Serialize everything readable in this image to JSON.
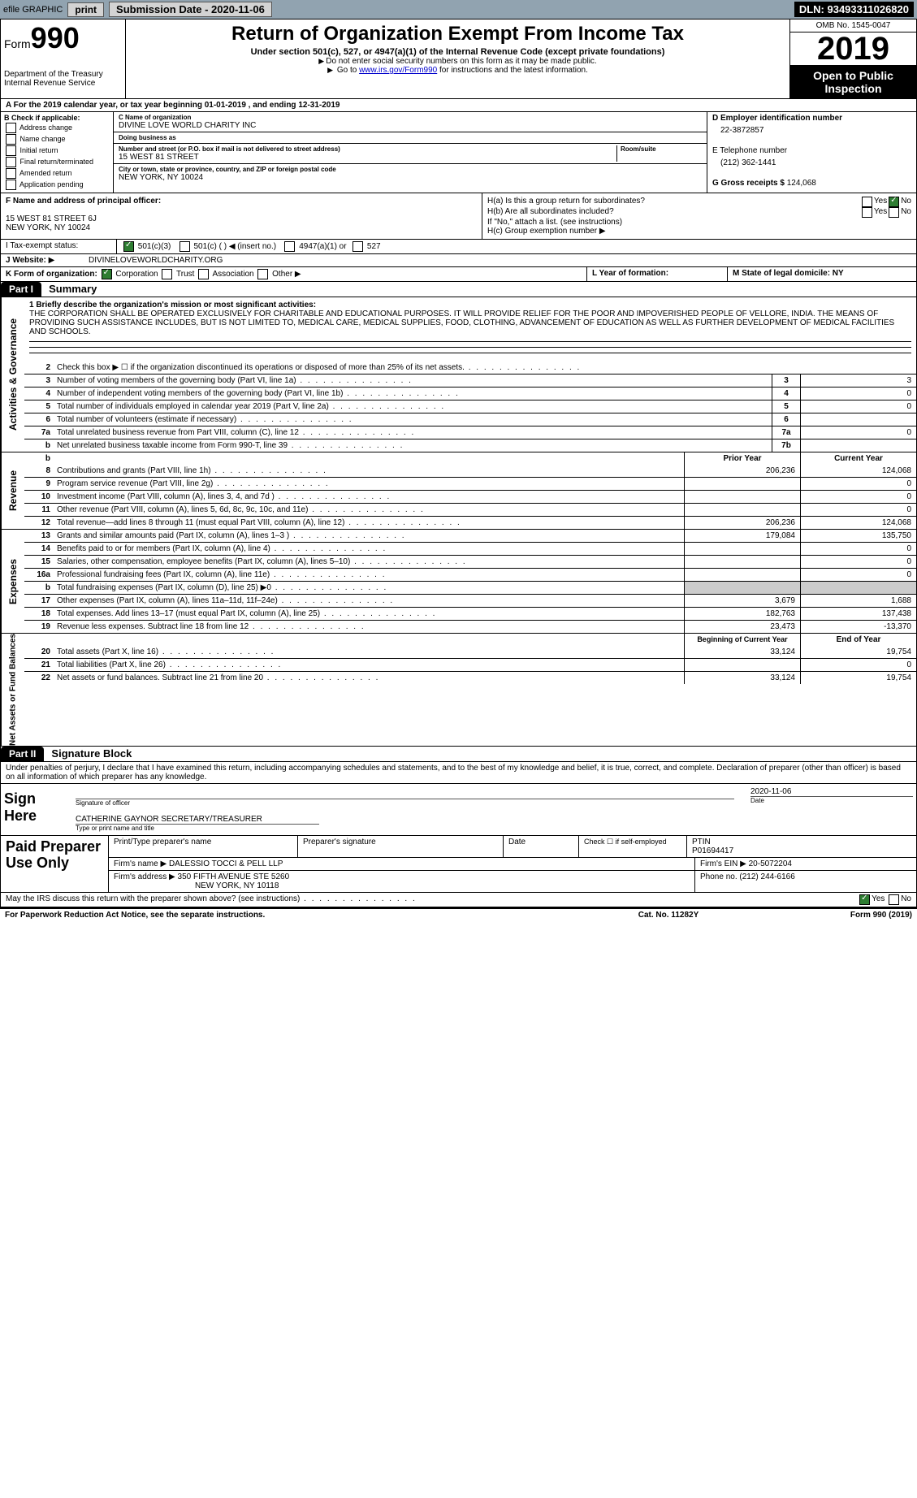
{
  "topbar": {
    "efile": "efile GRAPHIC",
    "print": "print",
    "subdate_label": "Submission Date - 2020-11-06",
    "dln": "DLN: 93493311026820"
  },
  "header": {
    "form_label": "Form",
    "form_num": "990",
    "dept": "Department of the Treasury\nInternal Revenue Service",
    "title": "Return of Organization Exempt From Income Tax",
    "subtitle": "Under section 501(c), 527, or 4947(a)(1) of the Internal Revenue Code (except private foundations)",
    "note1": "Do not enter social security numbers on this form as it may be made public.",
    "note2_pre": "Go to ",
    "note2_link": "www.irs.gov/Form990",
    "note2_post": " for instructions and the latest information.",
    "omb": "OMB No. 1545-0047",
    "year": "2019",
    "open": "Open to Public Inspection"
  },
  "section_a": "A For the 2019 calendar year, or tax year beginning 01-01-2019   , and ending 12-31-2019",
  "col_b": {
    "title": "B Check if applicable:",
    "items": [
      "Address change",
      "Name change",
      "Initial return",
      "Final return/terminated",
      "Amended return",
      "Application pending"
    ]
  },
  "col_c": {
    "name_lbl": "C Name of organization",
    "name": "DIVINE LOVE WORLD CHARITY INC",
    "dba_lbl": "Doing business as",
    "dba": "",
    "street_lbl": "Number and street (or P.O. box if mail is not delivered to street address)",
    "room_lbl": "Room/suite",
    "street": "15 WEST 81 STREET",
    "city_lbl": "City or town, state or province, country, and ZIP or foreign postal code",
    "city": "NEW YORK, NY  10024"
  },
  "col_d": {
    "ein_lbl": "D Employer identification number",
    "ein": "22-3872857",
    "phone_lbl": "E Telephone number",
    "phone": "(212) 362-1441",
    "gross_lbl": "G Gross receipts $",
    "gross": "124,068"
  },
  "fh": {
    "f_lbl": "F Name and address of principal officer:",
    "f_addr1": "15 WEST 81 STREET 6J",
    "f_addr2": "NEW YORK, NY  10024",
    "ha": "H(a) Is this a group return for subordinates?",
    "hb": "H(b) Are all subordinates included?",
    "h_note": "If \"No,\" attach a list. (see instructions)",
    "hc": "H(c) Group exemption number",
    "yes": "Yes",
    "no": "No"
  },
  "row_i": {
    "label": "I   Tax-exempt status:",
    "opts": [
      "501(c)(3)",
      "501(c) (  )",
      "(insert no.)",
      "4947(a)(1) or",
      "527"
    ]
  },
  "row_j": {
    "label": "J  Website:",
    "val": "DIVINELOVEWORLDCHARITY.ORG"
  },
  "row_k": {
    "label": "K Form of organization:",
    "opts": [
      "Corporation",
      "Trust",
      "Association",
      "Other"
    ],
    "l_lbl": "L Year of formation:",
    "m_lbl": "M State of legal domicile: NY"
  },
  "part1": {
    "hdr": "Part I",
    "title": "Summary",
    "tabs": [
      "Activities & Governance",
      "Revenue",
      "Expenses",
      "Net Assets or Fund Balances"
    ],
    "mission_lbl": "1  Briefly describe the organization's mission or most significant activities:",
    "mission": "THE CORPORATION SHALL BE OPERATED EXCLUSIVELY FOR CHARITABLE AND EDUCATIONAL PURPOSES. IT WILL PROVIDE RELIEF FOR THE POOR AND IMPOVERISHED PEOPLE OF VELLORE, INDIA. THE MEANS OF PROVIDING SUCH ASSISTANCE INCLUDES, BUT IS NOT LIMITED TO, MEDICAL CARE, MEDICAL SUPPLIES, FOOD, CLOTHING, ADVANCEMENT OF EDUCATION AS WELL AS FURTHER DEVELOPMENT OF MEDICAL FACILITIES AND SCHOOLS.",
    "lines_gov": [
      {
        "n": "2",
        "t": "Check this box ▶ ☐ if the organization discontinued its operations or disposed of more than 25% of its net assets.",
        "box": "",
        "v": ""
      },
      {
        "n": "3",
        "t": "Number of voting members of the governing body (Part VI, line 1a)",
        "box": "3",
        "v": "3"
      },
      {
        "n": "4",
        "t": "Number of independent voting members of the governing body (Part VI, line 1b)",
        "box": "4",
        "v": "0"
      },
      {
        "n": "5",
        "t": "Total number of individuals employed in calendar year 2019 (Part V, line 2a)",
        "box": "5",
        "v": "0"
      },
      {
        "n": "6",
        "t": "Total number of volunteers (estimate if necessary)",
        "box": "6",
        "v": ""
      },
      {
        "n": "7a",
        "t": "Total unrelated business revenue from Part VIII, column (C), line 12",
        "box": "7a",
        "v": "0"
      },
      {
        "n": "b",
        "t": "Net unrelated business taxable income from Form 990-T, line 39",
        "box": "7b",
        "v": ""
      }
    ],
    "col_hdrs": {
      "prior": "Prior Year",
      "current": "Current Year"
    },
    "lines_rev": [
      {
        "n": "8",
        "t": "Contributions and grants (Part VIII, line 1h)",
        "p": "206,236",
        "c": "124,068"
      },
      {
        "n": "9",
        "t": "Program service revenue (Part VIII, line 2g)",
        "p": "",
        "c": "0"
      },
      {
        "n": "10",
        "t": "Investment income (Part VIII, column (A), lines 3, 4, and 7d )",
        "p": "",
        "c": "0"
      },
      {
        "n": "11",
        "t": "Other revenue (Part VIII, column (A), lines 5, 6d, 8c, 9c, 10c, and 11e)",
        "p": "",
        "c": "0"
      },
      {
        "n": "12",
        "t": "Total revenue—add lines 8 through 11 (must equal Part VIII, column (A), line 12)",
        "p": "206,236",
        "c": "124,068"
      }
    ],
    "lines_exp": [
      {
        "n": "13",
        "t": "Grants and similar amounts paid (Part IX, column (A), lines 1–3 )",
        "p": "179,084",
        "c": "135,750"
      },
      {
        "n": "14",
        "t": "Benefits paid to or for members (Part IX, column (A), line 4)",
        "p": "",
        "c": "0"
      },
      {
        "n": "15",
        "t": "Salaries, other compensation, employee benefits (Part IX, column (A), lines 5–10)",
        "p": "",
        "c": "0"
      },
      {
        "n": "16a",
        "t": "Professional fundraising fees (Part IX, column (A), line 11e)",
        "p": "",
        "c": "0"
      },
      {
        "n": "b",
        "t": "Total fundraising expenses (Part IX, column (D), line 25) ▶0",
        "p": "",
        "c": ""
      },
      {
        "n": "17",
        "t": "Other expenses (Part IX, column (A), lines 11a–11d, 11f–24e)",
        "p": "3,679",
        "c": "1,688"
      },
      {
        "n": "18",
        "t": "Total expenses. Add lines 13–17 (must equal Part IX, column (A), line 25)",
        "p": "182,763",
        "c": "137,438"
      },
      {
        "n": "19",
        "t": "Revenue less expenses. Subtract line 18 from line 12",
        "p": "23,473",
        "c": "-13,370"
      }
    ],
    "col_hdrs2": {
      "beg": "Beginning of Current Year",
      "end": "End of Year"
    },
    "lines_net": [
      {
        "n": "20",
        "t": "Total assets (Part X, line 16)",
        "p": "33,124",
        "c": "19,754"
      },
      {
        "n": "21",
        "t": "Total liabilities (Part X, line 26)",
        "p": "",
        "c": "0"
      },
      {
        "n": "22",
        "t": "Net assets or fund balances. Subtract line 21 from line 20",
        "p": "33,124",
        "c": "19,754"
      }
    ]
  },
  "part2": {
    "hdr": "Part II",
    "title": "Signature Block",
    "decl": "Under penalties of perjury, I declare that I have examined this return, including accompanying schedules and statements, and to the best of my knowledge and belief, it is true, correct, and complete. Declaration of preparer (other than officer) is based on all information of which preparer has any knowledge.",
    "sign_here": "Sign Here",
    "sig_officer": "Signature of officer",
    "sig_date": "2020-11-06",
    "sig_name": "CATHERINE GAYNOR  SECRETARY/TREASURER",
    "sig_name_lbl": "Type or print name and title",
    "date_lbl": "Date"
  },
  "prep": {
    "label": "Paid Preparer Use Only",
    "r1": {
      "a": "Print/Type preparer's name",
      "b": "Preparer's signature",
      "c": "Date",
      "d": "Check ☐ if self-employed",
      "e": "PTIN",
      "e_val": "P01694417"
    },
    "r2": {
      "a": "Firm's name    ▶",
      "a_val": "DALESSIO TOCCI & PELL LLP",
      "b": "Firm's EIN ▶",
      "b_val": "20-5072204"
    },
    "r3": {
      "a": "Firm's address ▶",
      "a_val": "350 FIFTH AVENUE STE 5260",
      "a_val2": "NEW YORK, NY  10118",
      "b": "Phone no.",
      "b_val": "(212) 244-6166"
    }
  },
  "discuss": {
    "q": "May the IRS discuss this return with the preparer shown above? (see instructions)",
    "yes": "Yes",
    "no": "No"
  },
  "footer": {
    "left": "For Paperwork Reduction Act Notice, see the separate instructions.",
    "mid": "Cat. No. 11282Y",
    "right": "Form 990 (2019)"
  }
}
